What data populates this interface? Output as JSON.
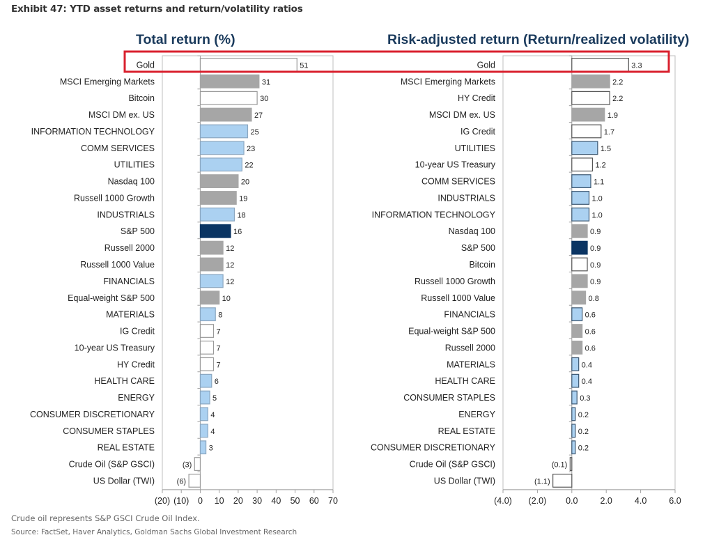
{
  "title": "Exhibit 47: YTD asset returns and return/volatility ratios",
  "footnotes": {
    "note": "Crude oil represents S&P GSCI Crude Oil Index.",
    "source": "Source: FactSet, Haver Analytics, Goldman Sachs Global Investment Research"
  },
  "colors": {
    "index": "#a6a6a6",
    "sector": "#abd1f1",
    "sp500": "#0b3563",
    "other": "#ffffff",
    "highlight": "#d9202e",
    "title": "#1a3a5c"
  },
  "highlight": {
    "label": "Gold"
  },
  "chart_data": [
    {
      "type": "bar",
      "orientation": "horizontal",
      "title": "Total return (%)",
      "xlim": [
        -20,
        70
      ],
      "xticks": [
        -20,
        -10,
        0,
        10,
        20,
        30,
        40,
        50,
        60,
        70
      ],
      "xtick_labels": [
        "(20)",
        "(10)",
        "0",
        "10",
        "20",
        "30",
        "40",
        "50",
        "60",
        "70"
      ],
      "grid": false,
      "categories": [
        "Gold",
        "MSCI Emerging Markets",
        "Bitcoin",
        "MSCI DM ex. US",
        "INFORMATION TECHNOLOGY",
        "COMM SERVICES",
        "UTILITIES",
        "Nasdaq 100",
        "Russell 1000 Growth",
        "INDUSTRIALS",
        "S&P 500",
        "Russell 2000",
        "Russell 1000 Value",
        "FINANCIALS",
        "Equal-weight S&P 500",
        "MATERIALS",
        "IG Credit",
        "10-year US Treasury",
        "HY Credit",
        "HEALTH CARE",
        "ENERGY",
        "CONSUMER DISCRETIONARY",
        "CONSUMER STAPLES",
        "REAL ESTATE",
        "Crude Oil (S&P GSCI)",
        "US Dollar (TWI)"
      ],
      "values": [
        51,
        31,
        30,
        27,
        25,
        23,
        22,
        20,
        19,
        18,
        16,
        12,
        12,
        12,
        10,
        8,
        7,
        7,
        7,
        6,
        5,
        4,
        4,
        3,
        -3,
        -6
      ],
      "value_labels": [
        "51",
        "31",
        "30",
        "27",
        "25",
        "23",
        "22",
        "20",
        "19",
        "18",
        "16",
        "12",
        "12",
        "12",
        "10",
        "8",
        "7",
        "7",
        "7",
        "6",
        "5",
        "4",
        "4",
        "3",
        "(3)",
        "(6)"
      ],
      "groups": [
        "other",
        "index",
        "other",
        "index",
        "sector",
        "sector",
        "sector",
        "index",
        "index",
        "sector",
        "sp500",
        "index",
        "index",
        "sector",
        "index",
        "sector",
        "other",
        "other",
        "other",
        "sector",
        "sector",
        "sector",
        "sector",
        "sector",
        "other",
        "other"
      ]
    },
    {
      "type": "bar",
      "orientation": "horizontal",
      "title": "Risk-adjusted return (Return/realized volatility)",
      "xlim": [
        -4,
        6
      ],
      "xticks": [
        -4,
        -2,
        0,
        2,
        4,
        6
      ],
      "xtick_labels": [
        "(4.0)",
        "(2.0)",
        "0.0",
        "2.0",
        "4.0",
        "6.0"
      ],
      "grid": false,
      "categories": [
        "Gold",
        "MSCI Emerging Markets",
        "HY Credit",
        "MSCI DM ex. US",
        "IG Credit",
        "UTILITIES",
        "10-year US Treasury",
        "COMM SERVICES",
        "INDUSTRIALS",
        "INFORMATION TECHNOLOGY",
        "Nasdaq 100",
        "S&P 500",
        "Bitcoin",
        "Russell 1000 Growth",
        "Russell 1000 Value",
        "FINANCIALS",
        "Equal-weight S&P 500",
        "Russell 2000",
        "MATERIALS",
        "HEALTH CARE",
        "CONSUMER STAPLES",
        "ENERGY",
        "REAL ESTATE",
        "CONSUMER DISCRETIONARY",
        "Crude Oil (S&P GSCI)",
        "US Dollar (TWI)"
      ],
      "values": [
        3.3,
        2.2,
        2.2,
        1.9,
        1.7,
        1.5,
        1.2,
        1.1,
        1.0,
        1.0,
        0.9,
        0.9,
        0.9,
        0.9,
        0.8,
        0.6,
        0.6,
        0.6,
        0.4,
        0.4,
        0.3,
        0.2,
        0.2,
        0.2,
        -0.1,
        -1.1
      ],
      "value_labels": [
        "3.3",
        "2.2",
        "2.2",
        "1.9",
        "1.7",
        "1.5",
        "1.2",
        "1.1",
        "1.0",
        "1.0",
        "0.9",
        "0.9",
        "0.9",
        "0.9",
        "0.8",
        "0.6",
        "0.6",
        "0.6",
        "0.4",
        "0.4",
        "0.3",
        "0.2",
        "0.2",
        "0.2",
        "(0.1)",
        "(1.1)"
      ],
      "groups": [
        "other",
        "index",
        "other",
        "index",
        "other",
        "sector",
        "other",
        "sector",
        "sector",
        "sector",
        "index",
        "sp500",
        "other",
        "index",
        "index",
        "sector",
        "index",
        "index",
        "sector",
        "sector",
        "sector",
        "sector",
        "sector",
        "sector",
        "other",
        "other"
      ]
    }
  ]
}
